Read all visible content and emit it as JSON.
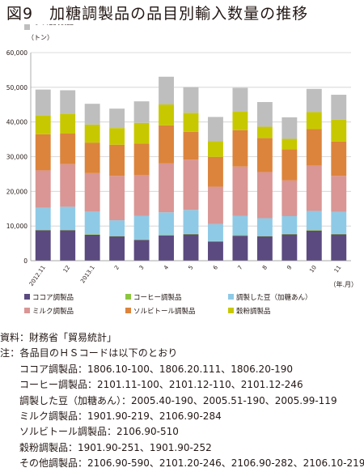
{
  "title": "図9　加糖調製品の品目別輸入数量の推移",
  "chart_data": {
    "type": "bar",
    "stacked": true,
    "unit_label": "（トン）",
    "x_unit_label": "（年.月）",
    "ylim": [
      0,
      60000
    ],
    "y_ticks": [
      "0",
      "10,000",
      "20,000",
      "30,000",
      "40,000",
      "50,000",
      "60,000"
    ],
    "categories": [
      "2012.11",
      "12",
      "2013.1",
      "2",
      "3",
      "4",
      "5",
      "6",
      "7",
      "8",
      "9",
      "10",
      "11"
    ],
    "grid": true,
    "legend_position": "bottom",
    "series": [
      {
        "name": "ココア調製品",
        "color": "#5b4a80",
        "values": [
          8800,
          8800,
          7500,
          7000,
          6000,
          7300,
          7600,
          5500,
          7200,
          7000,
          7600,
          8700,
          7600
        ]
      },
      {
        "name": "コーヒー調製品",
        "color": "#8cc63f",
        "values": [
          150,
          150,
          150,
          150,
          150,
          150,
          150,
          150,
          150,
          150,
          150,
          150,
          150
        ]
      },
      {
        "name": "調製した豆（加糖あん）",
        "color": "#8ecae6",
        "values": [
          6300,
          6600,
          6500,
          4500,
          6800,
          6500,
          6900,
          4900,
          5600,
          5100,
          5100,
          5500,
          6300
        ]
      },
      {
        "name": "ミルク調製品",
        "color": "#d99694",
        "values": [
          10800,
          12300,
          11100,
          12800,
          11800,
          14100,
          14500,
          10800,
          14200,
          13300,
          10300,
          13100,
          10400
        ]
      },
      {
        "name": "ソルビトール調製品",
        "color": "#dc843c",
        "values": [
          10400,
          8800,
          8800,
          9000,
          9000,
          11000,
          8000,
          8600,
          10500,
          9800,
          9000,
          10500,
          9900
        ]
      },
      {
        "name": "穀粉調製品",
        "color": "#c8c800",
        "values": [
          5500,
          5700,
          5200,
          4800,
          6000,
          6000,
          5500,
          4500,
          5300,
          3300,
          3000,
          4900,
          6300
        ]
      },
      {
        "name": "その他調製品",
        "color": "#bebebe",
        "values": [
          7400,
          6800,
          6000,
          5600,
          6200,
          8000,
          7400,
          7000,
          6900,
          7100,
          6200,
          6700,
          7200
        ]
      }
    ]
  },
  "notes": {
    "source": "資料：財務省「貿易統計」",
    "note_head": "注：各品目のＨＳコードは以下のとおり",
    "cocoa": "ココア調製品：1806.10-100、1806.20.111、1806.20-190",
    "coffee": "コーヒー調製品：2101.11-100、2101.12-110、2101.12-246",
    "beans": "調製した豆（加糖あん）：2005.40-190、2005.51-190、2005.99-119",
    "milk": "ミルク調製品：1901.90-219、2106.90-284",
    "sorbitol": "ソルビトール調製品：2106.90-510",
    "flour": "穀粉調製品：1901.90-251、1901.90-252",
    "other": "その他調製品：2106.90-590、2101.20-246、2106.90-282、2106.10-219"
  }
}
